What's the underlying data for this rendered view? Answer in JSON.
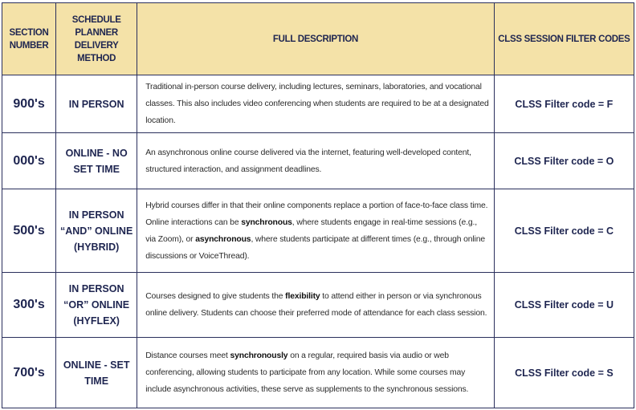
{
  "headers": {
    "section_number": "SECTION NUMBER",
    "delivery_method": "SCHEDULE PLANNER DELIVERY METHOD",
    "full_description": "FULL DESCRIPTION",
    "filter_codes": "CLSS SESSION FILTER CODES"
  },
  "colors": {
    "header_bg": "#f4e2a8",
    "navy": "#1e2550",
    "border": "#2a2f5c"
  },
  "rows": [
    {
      "section": "900's",
      "method": "IN PERSON",
      "description": [
        {
          "text": "Traditional in-person course delivery, including lectures, seminars, laboratories, and vocational classes. This also includes video conferencing when students are required to be at a designated location.",
          "bold": false
        }
      ],
      "code": "CLSS Filter code = F"
    },
    {
      "section": "000's",
      "method": "ONLINE - NO SET TIME",
      "description": [
        {
          "text": "An asynchronous online course delivered via the internet, featuring well-developed content, structured interaction, and assignment deadlines.",
          "bold": false
        }
      ],
      "code": "CLSS Filter code = O"
    },
    {
      "section": "500's",
      "method": "IN PERSON “AND” ONLINE (HYBRID)",
      "description": [
        {
          "text": "Hybrid courses differ in that their online components replace a portion of face-to-face class time. Online interactions can be ",
          "bold": false
        },
        {
          "text": "synchronous",
          "bold": true
        },
        {
          "text": ", where students engage in real-time sessions (e.g., via Zoom), or ",
          "bold": false
        },
        {
          "text": "asynchronous",
          "bold": true
        },
        {
          "text": ", where students participate at different times (e.g., through online discussions or VoiceThread).",
          "bold": false
        }
      ],
      "code": "CLSS Filter code = C"
    },
    {
      "section": "300's",
      "method": "IN PERSON “OR” ONLINE (HYFLEX)",
      "description": [
        {
          "text": "Courses designed to give students the ",
          "bold": false
        },
        {
          "text": "flexibility",
          "bold": true
        },
        {
          "text": " to attend either in person or via synchronous online delivery. Students can choose their preferred mode of attendance for each class session.",
          "bold": false
        }
      ],
      "code": "CLSS Filter code = U"
    },
    {
      "section": "700's",
      "method": "ONLINE - SET TIME",
      "description": [
        {
          "text": "Distance courses meet ",
          "bold": false
        },
        {
          "text": "synchronously",
          "bold": true
        },
        {
          "text": " on a regular, required basis via audio or web conferencing, allowing students to participate from any location. While some courses may include asynchronous activities, these serve as supplements to the synchronous sessions.",
          "bold": false
        }
      ],
      "code": "CLSS Filter code = S"
    }
  ]
}
